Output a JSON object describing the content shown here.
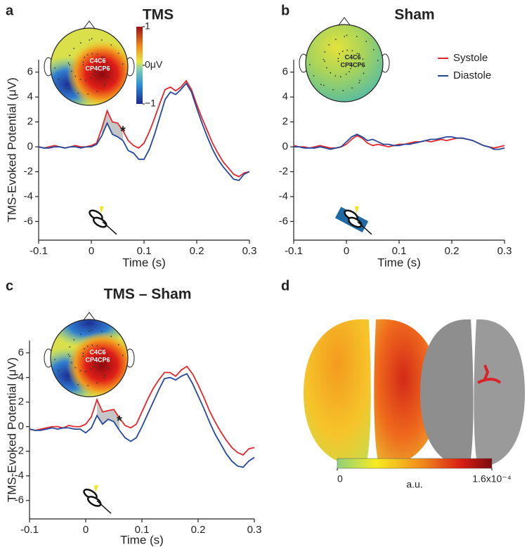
{
  "chart_data": [
    {
      "type": "line",
      "panel_label": "a",
      "title": "TMS",
      "x_label": "Time (s)",
      "y_label": "TMS-Evoked Potential (μV)",
      "annotation": "*",
      "x": [
        -0.1,
        -0.09,
        -0.08,
        -0.07,
        -0.06,
        -0.05,
        -0.04,
        -0.03,
        -0.02,
        -0.01,
        0,
        0.01,
        0.02,
        0.03,
        0.04,
        0.05,
        0.06,
        0.07,
        0.08,
        0.09,
        0.1,
        0.11,
        0.12,
        0.13,
        0.14,
        0.15,
        0.16,
        0.17,
        0.18,
        0.19,
        0.2,
        0.21,
        0.22,
        0.23,
        0.24,
        0.25,
        0.26,
        0.27,
        0.28,
        0.29,
        0.3
      ],
      "series": [
        {
          "name": "Systole",
          "color": "#e3262b",
          "values": [
            0,
            -0.1,
            0,
            0.1,
            0,
            -0.1,
            0,
            0.1,
            0,
            0,
            0.1,
            0.3,
            1.5,
            2.9,
            2.0,
            1.9,
            1.3,
            0.5,
            0.1,
            -0.1,
            0.3,
            1.2,
            2.3,
            3.5,
            4.6,
            4.8,
            4.5,
            4.8,
            5.3,
            4.6,
            3.4,
            2.3,
            1.3,
            0.3,
            -0.5,
            -1.2,
            -1.7,
            -2.2,
            -2.4,
            -2.1,
            -2.0
          ]
        },
        {
          "name": "Diastole",
          "color": "#23489c",
          "values": [
            0,
            -0.1,
            -0.1,
            0,
            0,
            -0.1,
            0,
            0,
            -0.1,
            0,
            0,
            0.2,
            0.9,
            1.9,
            1.0,
            0.8,
            0.5,
            -0.3,
            -0.5,
            -1.0,
            -1.0,
            -0.2,
            1.0,
            2.4,
            3.8,
            4.4,
            4.2,
            4.6,
            5.1,
            4.4,
            3.1,
            1.9,
            0.8,
            -0.2,
            -1.0,
            -1.6,
            -2.1,
            -2.6,
            -2.7,
            -2.2,
            -2.0
          ]
        }
      ],
      "xlim": [
        -0.1,
        0.3
      ],
      "ylim": [
        -7.5,
        7
      ],
      "xticks": [
        -0.1,
        0,
        0.1,
        0.2,
        0.3
      ],
      "yticks": [
        -6,
        -4,
        -2,
        0,
        2,
        4,
        6
      ],
      "shade_x": [
        0.02,
        0.06
      ],
      "topomap": {
        "labels": [
          "C4C6",
          "CP4CP6"
        ],
        "clim": [
          -1,
          1
        ],
        "colorbar_ticks": [
          1,
          {
            "value": 0,
            "label": "0μV"
          },
          {
            "value": -1,
            "label": "−1"
          }
        ]
      }
    },
    {
      "type": "line",
      "panel_label": "b",
      "title": "Sham",
      "x_label": "Time (s)",
      "legend": "upper right",
      "x": [
        -0.1,
        -0.09,
        -0.08,
        -0.07,
        -0.06,
        -0.05,
        -0.04,
        -0.03,
        -0.02,
        -0.01,
        0,
        0.01,
        0.02,
        0.03,
        0.04,
        0.05,
        0.06,
        0.07,
        0.08,
        0.09,
        0.1,
        0.11,
        0.12,
        0.13,
        0.14,
        0.15,
        0.16,
        0.17,
        0.18,
        0.19,
        0.2,
        0.21,
        0.22,
        0.23,
        0.24,
        0.25,
        0.26,
        0.27,
        0.28,
        0.29,
        0.3
      ],
      "series": [
        {
          "name": "Systole",
          "color": "#e3262b",
          "values": [
            0.1,
            0,
            0,
            -0.1,
            0,
            0.1,
            0,
            -0.1,
            -0.1,
            0,
            0.2,
            0.6,
            0.9,
            0.7,
            0.3,
            0.1,
            0.2,
            0.1,
            0,
            0.1,
            0.2,
            0.2,
            0.3,
            0.4,
            0.4,
            0.5,
            0.4,
            0.5,
            0.6,
            0.5,
            0.6,
            0.7,
            0.7,
            0.6,
            0.5,
            0.3,
            0.1,
            0,
            -0.1,
            0,
            0.1
          ]
        },
        {
          "name": "Diastole",
          "color": "#23489c",
          "values": [
            0,
            0,
            -0.1,
            -0.1,
            -0.1,
            0,
            -0.1,
            -0.2,
            -0.1,
            0,
            0.4,
            0.8,
            1.0,
            0.8,
            0.5,
            0.6,
            0.4,
            0.2,
            0.2,
            0.1,
            0.1,
            0.2,
            0.2,
            0.3,
            0.4,
            0.5,
            0.6,
            0.6,
            0.7,
            0.8,
            0.8,
            0.7,
            0.7,
            0.6,
            0.5,
            0.3,
            0.1,
            0,
            -0.2,
            -0.2,
            -0.1
          ]
        }
      ],
      "xlim": [
        -0.1,
        0.3
      ],
      "ylim": [
        -7.5,
        7
      ],
      "xticks": [
        -0.1,
        0,
        0.1,
        0.2,
        0.3
      ],
      "yticks": [
        -6,
        -4,
        -2,
        0,
        2,
        4,
        6
      ],
      "topomap": {
        "labels": [
          "C4C6",
          "CP4CP6"
        ]
      }
    },
    {
      "type": "line",
      "panel_label": "c",
      "title": "TMS – Sham",
      "x_label": "Time (s)",
      "y_label": "TMS-Evoked Potential (μV)",
      "annotation": "*",
      "x": [
        -0.1,
        -0.09,
        -0.08,
        -0.07,
        -0.06,
        -0.05,
        -0.04,
        -0.03,
        -0.02,
        -0.01,
        0,
        0.01,
        0.02,
        0.03,
        0.04,
        0.05,
        0.06,
        0.07,
        0.08,
        0.09,
        0.1,
        0.11,
        0.12,
        0.13,
        0.14,
        0.15,
        0.16,
        0.17,
        0.18,
        0.19,
        0.2,
        0.21,
        0.22,
        0.23,
        0.24,
        0.25,
        0.26,
        0.27,
        0.28,
        0.29,
        0.3
      ],
      "series": [
        {
          "name": "Systole",
          "color": "#e3262b",
          "values": [
            -0.2,
            -0.3,
            -0.2,
            -0.1,
            0,
            0,
            -0.1,
            0.1,
            0,
            0,
            0.2,
            0.8,
            2.2,
            1.2,
            1.3,
            1.4,
            0.7,
            0.1,
            -0.1,
            0.2,
            1.2,
            2.2,
            3.1,
            3.8,
            4.4,
            4.4,
            4.1,
            4.6,
            4.9,
            4.3,
            3.4,
            2.4,
            1.3,
            0.4,
            -0.4,
            -1.1,
            -1.7,
            -2.1,
            -2.3,
            -1.8,
            -1.7
          ]
        },
        {
          "name": "Diastole",
          "color": "#23489c",
          "values": [
            -0.2,
            -0.3,
            -0.3,
            -0.2,
            -0.1,
            -0.2,
            -0.1,
            -0.1,
            -0.2,
            -0.2,
            -0.5,
            -0.1,
            0.9,
            0.2,
            0.6,
            0.4,
            -0.3,
            -0.9,
            -1.2,
            -0.9,
            0,
            1.0,
            2.0,
            3.0,
            3.9,
            4.0,
            3.8,
            4.1,
            4.3,
            3.5,
            2.5,
            1.5,
            0.4,
            -0.6,
            -1.4,
            -2.2,
            -2.8,
            -3.2,
            -3.3,
            -2.8,
            -2.5
          ]
        }
      ],
      "xlim": [
        -0.1,
        0.3
      ],
      "ylim": [
        -7.5,
        7
      ],
      "xticks": [
        -0.1,
        0,
        0.1,
        0.2,
        0.3
      ],
      "yticks": [
        -6,
        -4,
        -2,
        0,
        2,
        4,
        6
      ],
      "shade_x": [
        0.02,
        0.06
      ],
      "topomap": {
        "labels": [
          "C4C6",
          "CP4CP6"
        ]
      }
    },
    {
      "type": "brain-map",
      "panel_label": "d",
      "colorbar": {
        "label": "a.u.",
        "clim": [
          0,
          0.00016
        ],
        "ticks": [
          0,
          {
            "value": 0.00016,
            "label": "1.6x10⁻⁴"
          }
        ]
      }
    }
  ]
}
